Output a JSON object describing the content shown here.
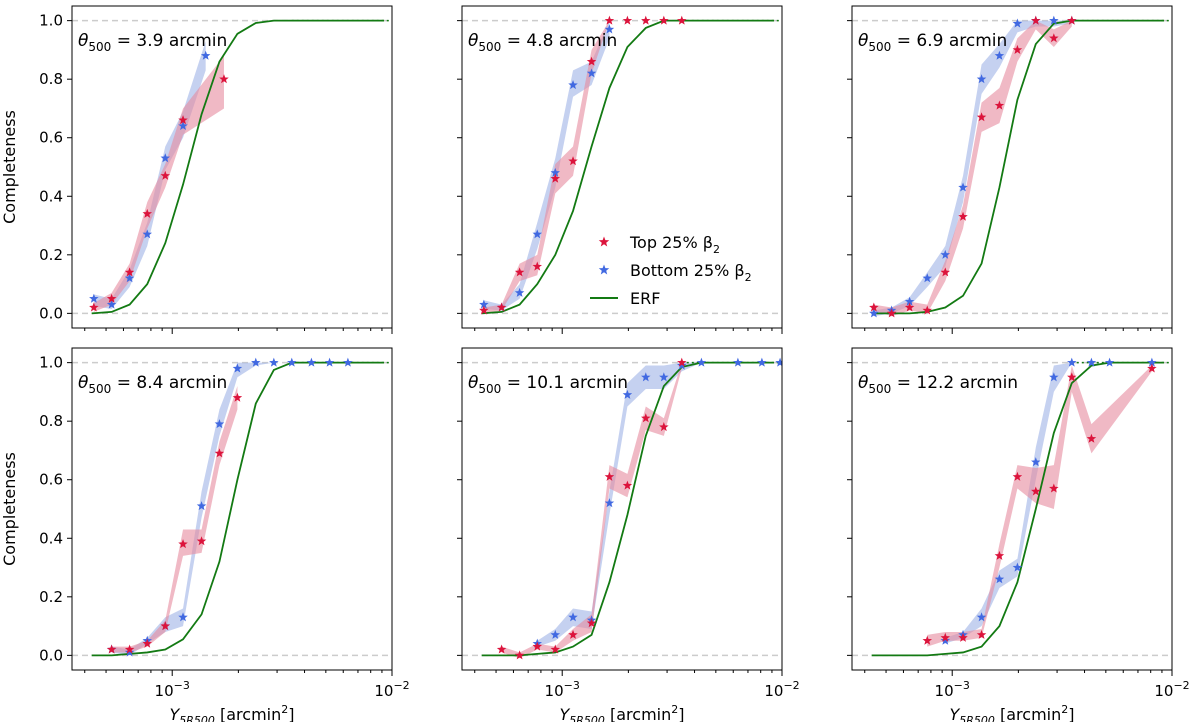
{
  "figure": {
    "ylabel": "Completeness",
    "xlabel_main": "Y",
    "xlabel_sub": "5R500",
    "xlabel_rest": " [arcmin",
    "xlabel_sup": "2",
    "xlabel_close": "]",
    "xtick_base": "10",
    "xtick_exp_1": "−3",
    "xtick_exp_2": "−2",
    "yticks": [
      "0.0",
      "0.2",
      "0.4",
      "0.6",
      "0.8",
      "1.0"
    ],
    "theta_symbol": "θ",
    "theta_sub": "500",
    "theta_eq": " = ",
    "theta_unit": " arcmin"
  },
  "legend": {
    "top": "Top 25% β",
    "bottom": "Bottom 25% β",
    "sub": "2",
    "erf": "ERF"
  },
  "colors": {
    "top": "#dc143c",
    "top_band": "#e68a9f",
    "bottom": "#4169e1",
    "bottom_band": "#9fb3e6",
    "erf": "#137a13",
    "ref": "#cccccc"
  },
  "chart_data": [
    {
      "type": "line",
      "title": "θ500 = 3.9 arcmin",
      "theta": "3.9",
      "xscale": "log",
      "xlim": [
        0.00035,
        0.01
      ],
      "ylim": [
        -0.05,
        1.05
      ],
      "xlabel": "Y5R500 [arcmin2]",
      "ylabel": "Completeness",
      "series": [
        {
          "name": "ERF",
          "x": [
            0.00043,
            0.00053,
            0.00064,
            0.00077,
            0.00093,
            0.00112,
            0.00136,
            0.00164,
            0.00198,
            0.0024,
            0.0029,
            0.0035,
            0.0043,
            0.0052,
            0.0063,
            0.0076,
            0.0092
          ],
          "y": [
            0,
            0.005,
            0.03,
            0.1,
            0.24,
            0.44,
            0.68,
            0.86,
            0.955,
            0.992,
            1,
            1,
            1,
            1,
            1,
            1,
            1
          ]
        },
        {
          "name": "Top 25% β2",
          "x": [
            0.00044,
            0.00053,
            0.00064,
            0.00077,
            0.00093,
            0.00112,
            0.00172
          ],
          "y": [
            0.02,
            0.05,
            0.14,
            0.34,
            0.47,
            0.66,
            0.8
          ],
          "lo": [
            0.005,
            0.03,
            0.11,
            0.29,
            0.43,
            0.61,
            0.7
          ],
          "hi": [
            0.035,
            0.07,
            0.17,
            0.38,
            0.51,
            0.7,
            0.88
          ]
        },
        {
          "name": "Bottom 25% β2",
          "x": [
            0.00044,
            0.00053,
            0.00064,
            0.00077,
            0.00093,
            0.00112,
            0.00142
          ],
          "y": [
            0.05,
            0.03,
            0.12,
            0.27,
            0.53,
            0.64,
            0.88
          ],
          "lo": [
            0.025,
            0.015,
            0.09,
            0.23,
            0.49,
            0.6,
            0.83
          ],
          "hi": [
            0.065,
            0.05,
            0.15,
            0.31,
            0.57,
            0.69,
            0.93
          ]
        }
      ]
    },
    {
      "type": "line",
      "title": "θ500 = 4.8 arcmin",
      "theta": "4.8",
      "xscale": "log",
      "xlim": [
        0.00035,
        0.01
      ],
      "ylim": [
        -0.05,
        1.05
      ],
      "xlabel": "Y5R500 [arcmin2]",
      "ylabel": "Completeness",
      "series": [
        {
          "name": "ERF",
          "x": [
            0.00043,
            0.00053,
            0.00064,
            0.00077,
            0.00093,
            0.00112,
            0.00136,
            0.00164,
            0.00198,
            0.0024,
            0.0029,
            0.0035,
            0.0043,
            0.0052,
            0.0063,
            0.0076,
            0.0092
          ],
          "y": [
            0,
            0.005,
            0.03,
            0.1,
            0.2,
            0.35,
            0.57,
            0.77,
            0.91,
            0.975,
            1,
            1,
            1,
            1,
            1,
            1,
            1
          ]
        },
        {
          "name": "Top 25% β2",
          "x": [
            0.00044,
            0.00053,
            0.00064,
            0.00077,
            0.00093,
            0.00112,
            0.00136,
            0.00164,
            0.00198,
            0.0024,
            0.0029,
            0.0035
          ],
          "y": [
            0.01,
            0.02,
            0.14,
            0.16,
            0.46,
            0.52,
            0.86,
            1,
            1,
            1,
            1,
            1
          ],
          "lo": [
            0,
            0.01,
            0.11,
            0.13,
            0.41,
            0.47,
            0.82,
            1,
            1,
            1,
            1,
            1
          ],
          "hi": [
            0.02,
            0.03,
            0.17,
            0.2,
            0.51,
            0.57,
            0.9,
            1,
            1,
            1,
            1,
            1
          ]
        },
        {
          "name": "Bottom 25% β2",
          "x": [
            0.00044,
            0.00053,
            0.00064,
            0.00077,
            0.00093,
            0.00112,
            0.00136,
            0.00164
          ],
          "y": [
            0.03,
            0.02,
            0.07,
            0.27,
            0.48,
            0.78,
            0.82,
            0.97
          ],
          "lo": [
            0.015,
            0.01,
            0.05,
            0.22,
            0.43,
            0.74,
            0.78,
            0.94
          ],
          "hi": [
            0.045,
            0.03,
            0.1,
            0.31,
            0.53,
            0.83,
            0.86,
            1
          ]
        }
      ]
    },
    {
      "type": "line",
      "title": "θ500 = 6.9 arcmin",
      "theta": "6.9",
      "xscale": "log",
      "xlim": [
        0.00035,
        0.01
      ],
      "ylim": [
        -0.05,
        1.05
      ],
      "xlabel": "Y5R500 [arcmin2]",
      "ylabel": "Completeness",
      "series": [
        {
          "name": "ERF",
          "x": [
            0.00043,
            0.00053,
            0.00064,
            0.00077,
            0.00093,
            0.00112,
            0.00136,
            0.00164,
            0.00198,
            0.0024,
            0.0029,
            0.0035,
            0.0043,
            0.0052,
            0.0063,
            0.0076,
            0.0092
          ],
          "y": [
            0,
            0,
            0,
            0.005,
            0.02,
            0.06,
            0.17,
            0.43,
            0.73,
            0.92,
            0.99,
            1,
            1,
            1,
            1,
            1,
            1
          ]
        },
        {
          "name": "Top 25% β2",
          "x": [
            0.00044,
            0.00053,
            0.00064,
            0.00077,
            0.00093,
            0.00112,
            0.00136,
            0.00164,
            0.00198,
            0.0024,
            0.0029,
            0.0035
          ],
          "y": [
            0.02,
            0,
            0.02,
            0.01,
            0.14,
            0.33,
            0.67,
            0.71,
            0.9,
            1,
            0.94,
            1
          ],
          "lo": [
            0.01,
            -0.01,
            0.01,
            0,
            0.11,
            0.29,
            0.62,
            0.65,
            0.86,
            0.97,
            0.91,
            0.98
          ],
          "hi": [
            0.03,
            0.02,
            0.04,
            0.03,
            0.18,
            0.37,
            0.72,
            0.77,
            0.94,
            1,
            0.97,
            1
          ]
        },
        {
          "name": "Bottom 25% β2",
          "x": [
            0.00044,
            0.00053,
            0.00064,
            0.00077,
            0.00093,
            0.00112,
            0.00136,
            0.00164,
            0.00198,
            0.0024,
            0.0029,
            0.0035
          ],
          "y": [
            0,
            0.01,
            0.04,
            0.12,
            0.2,
            0.43,
            0.8,
            0.88,
            0.99,
            1,
            1,
            1
          ],
          "lo": [
            -0.01,
            0,
            0.025,
            0.09,
            0.16,
            0.38,
            0.75,
            0.84,
            0.96,
            0.98,
            0.98,
            0.99
          ],
          "hi": [
            0.01,
            0.02,
            0.055,
            0.14,
            0.23,
            0.47,
            0.85,
            0.92,
            1,
            1,
            1,
            1
          ]
        }
      ]
    },
    {
      "type": "line",
      "title": "θ500 = 8.4 arcmin",
      "theta": "8.4",
      "xscale": "log",
      "xlim": [
        0.00035,
        0.01
      ],
      "ylim": [
        -0.05,
        1.05
      ],
      "xlabel": "Y5R500 [arcmin2]",
      "ylabel": "Completeness",
      "series": [
        {
          "name": "ERF",
          "x": [
            0.00043,
            0.00053,
            0.00064,
            0.00077,
            0.00093,
            0.00112,
            0.00136,
            0.00164,
            0.00198,
            0.0024,
            0.0029,
            0.0035,
            0.0043,
            0.0052,
            0.0063,
            0.0076,
            0.0092
          ],
          "y": [
            0,
            0,
            0.005,
            0.01,
            0.02,
            0.055,
            0.14,
            0.32,
            0.6,
            0.86,
            0.975,
            1,
            1,
            1,
            1,
            1,
            1
          ]
        },
        {
          "name": "Top 25% β2",
          "x": [
            0.00053,
            0.00064,
            0.00077,
            0.00093,
            0.00112,
            0.00136,
            0.00164,
            0.00198
          ],
          "y": [
            0.02,
            0.02,
            0.04,
            0.1,
            0.38,
            0.39,
            0.69,
            0.88
          ],
          "lo": [
            0.01,
            0.01,
            0.03,
            0.08,
            0.34,
            0.35,
            0.65,
            0.84
          ],
          "hi": [
            0.03,
            0.03,
            0.05,
            0.12,
            0.43,
            0.43,
            0.73,
            0.92
          ]
        },
        {
          "name": "Bottom 25% β2",
          "x": [
            0.00053,
            0.00064,
            0.00077,
            0.00093,
            0.00112,
            0.00136,
            0.00164,
            0.00198,
            0.0024,
            0.0029,
            0.0035,
            0.0043,
            0.0052,
            0.0063
          ],
          "y": [
            0.02,
            0.01,
            0.05,
            0.1,
            0.13,
            0.51,
            0.79,
            0.98,
            1,
            1,
            1,
            1,
            1,
            1
          ],
          "lo": [
            0.01,
            0,
            0.04,
            0.08,
            0.1,
            0.47,
            0.75,
            0.95,
            0.99,
            1,
            1,
            1,
            1,
            1
          ],
          "hi": [
            0.03,
            0.02,
            0.06,
            0.13,
            0.16,
            0.56,
            0.84,
            1,
            1,
            1,
            1,
            1,
            1,
            1
          ]
        }
      ]
    },
    {
      "type": "line",
      "title": "θ500 = 10.1 arcmin",
      "theta": "10.1",
      "xscale": "log",
      "xlim": [
        0.00035,
        0.01
      ],
      "ylim": [
        -0.05,
        1.05
      ],
      "xlabel": "Y5R500 [arcmin2]",
      "ylabel": "Completeness",
      "series": [
        {
          "name": "ERF",
          "x": [
            0.00043,
            0.00053,
            0.00064,
            0.00077,
            0.00093,
            0.00112,
            0.00136,
            0.00164,
            0.00198,
            0.0024,
            0.0029,
            0.0035,
            0.0043,
            0.0052,
            0.0063,
            0.0076,
            0.0092
          ],
          "y": [
            0,
            0,
            0,
            0.005,
            0.01,
            0.03,
            0.07,
            0.25,
            0.48,
            0.75,
            0.92,
            0.985,
            1,
            1,
            1,
            1,
            1
          ]
        },
        {
          "name": "Top 25% β2",
          "x": [
            0.00053,
            0.00064,
            0.00077,
            0.00093,
            0.00112,
            0.00136,
            0.00164,
            0.00198,
            0.0024,
            0.0029,
            0.0035
          ],
          "y": [
            0.02,
            0,
            0.03,
            0.02,
            0.07,
            0.11,
            0.61,
            0.58,
            0.81,
            0.78,
            1
          ],
          "lo": [
            0.01,
            -0.01,
            0.02,
            0.01,
            0.05,
            0.08,
            0.57,
            0.54,
            0.77,
            0.75,
            0.98
          ],
          "hi": [
            0.03,
            0.01,
            0.04,
            0.03,
            0.09,
            0.14,
            0.65,
            0.62,
            0.85,
            0.81,
            1
          ]
        },
        {
          "name": "Bottom 25% β2",
          "x": [
            0.00077,
            0.00093,
            0.00112,
            0.00136,
            0.00164,
            0.00198,
            0.0024,
            0.0029,
            0.0035,
            0.0043,
            0.0063,
            0.0081,
            0.0098
          ],
          "y": [
            0.04,
            0.07,
            0.13,
            0.12,
            0.52,
            0.89,
            0.95,
            0.95,
            0.99,
            1,
            1,
            1,
            1
          ],
          "lo": [
            0.03,
            0.05,
            0.1,
            0.09,
            0.48,
            0.85,
            0.91,
            0.91,
            0.97,
            1,
            1,
            1,
            1
          ],
          "hi": [
            0.05,
            0.09,
            0.16,
            0.15,
            0.56,
            0.93,
            0.99,
            0.99,
            1,
            1,
            1,
            1,
            1
          ]
        }
      ]
    },
    {
      "type": "line",
      "title": "θ500 = 12.2 arcmin",
      "theta": "12.2",
      "xscale": "log",
      "xlim": [
        0.00035,
        0.01
      ],
      "ylim": [
        -0.05,
        1.05
      ],
      "xlabel": "Y5R500 [arcmin2]",
      "ylabel": "Completeness",
      "series": [
        {
          "name": "ERF",
          "x": [
            0.00043,
            0.00053,
            0.00064,
            0.00077,
            0.00093,
            0.00112,
            0.00136,
            0.00164,
            0.00198,
            0.0024,
            0.0029,
            0.0035,
            0.0043,
            0.0052,
            0.0063,
            0.0076,
            0.0092
          ],
          "y": [
            0,
            0,
            0,
            0,
            0.005,
            0.01,
            0.03,
            0.1,
            0.25,
            0.5,
            0.76,
            0.93,
            0.99,
            1,
            1,
            1,
            1
          ]
        },
        {
          "name": "Top 25% β2",
          "x": [
            0.00077,
            0.00093,
            0.00112,
            0.00136,
            0.00164,
            0.00198,
            0.0024,
            0.0029,
            0.0035,
            0.0043,
            0.0081
          ],
          "y": [
            0.05,
            0.06,
            0.06,
            0.07,
            0.34,
            0.61,
            0.56,
            0.57,
            0.95,
            0.74,
            0.98
          ],
          "lo": [
            0.03,
            0.05,
            0.05,
            0.06,
            0.3,
            0.57,
            0.52,
            0.5,
            0.9,
            0.69,
            0.97
          ],
          "hi": [
            0.07,
            0.08,
            0.08,
            0.09,
            0.38,
            0.65,
            0.64,
            0.65,
            0.99,
            0.79,
            0.99
          ]
        },
        {
          "name": "Bottom 25% β2",
          "x": [
            0.00093,
            0.00112,
            0.00136,
            0.00164,
            0.00198,
            0.0024,
            0.0029,
            0.0035,
            0.0043,
            0.0052,
            0.0081
          ],
          "y": [
            0.05,
            0.07,
            0.13,
            0.26,
            0.3,
            0.66,
            0.95,
            1,
            1,
            1,
            1
          ],
          "lo": [
            0.04,
            0.06,
            0.1,
            0.23,
            0.27,
            0.6,
            0.9,
            1,
            1,
            1,
            1
          ],
          "hi": [
            0.06,
            0.08,
            0.16,
            0.29,
            0.33,
            0.71,
            0.99,
            1,
            1,
            1,
            1
          ]
        }
      ]
    }
  ]
}
